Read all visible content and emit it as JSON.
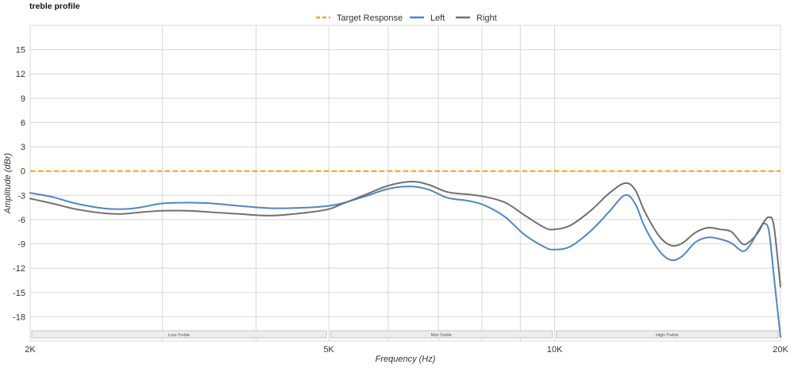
{
  "title": "treble profile",
  "colors": {
    "target": "#F5A31A",
    "left": "#4F86C6",
    "right": "#707070",
    "grid": "#D8D8D8",
    "band_fill": "#EDEDED",
    "band_border": "#B8B8B8"
  },
  "chart_data": {
    "type": "line",
    "title": "treble profile",
    "xlabel": "Frequency (Hz)",
    "ylabel": "Amplitude (dBr)",
    "xscale": "log",
    "xlim": [
      2000,
      20000
    ],
    "ylim": [
      -21,
      18
    ],
    "x_ticks": [
      {
        "value": 2000,
        "label": "2K"
      },
      {
        "value": 5000,
        "label": "5K"
      },
      {
        "value": 10000,
        "label": "10K"
      },
      {
        "value": 20000,
        "label": "20K"
      }
    ],
    "x_minor_gridlines": [
      3000,
      4000,
      6000,
      7000,
      8000,
      9000
    ],
    "y_ticks": [
      15,
      12,
      9,
      6,
      3,
      0,
      -3,
      -6,
      -9,
      -12,
      -15,
      -18
    ],
    "grid": true,
    "legend_position": "top-center",
    "bands": [
      {
        "label": "Low-Treble",
        "from": 2000,
        "to": 5000
      },
      {
        "label": "Mid-Treble",
        "from": 5000,
        "to": 10000
      },
      {
        "label": "High-Treble",
        "from": 10000,
        "to": 20000
      }
    ],
    "series": [
      {
        "name": "Target Response",
        "style": "dashed",
        "points": [
          [
            2000,
            0
          ],
          [
            20000,
            0
          ]
        ]
      },
      {
        "name": "Left",
        "style": "solid",
        "points": [
          [
            2000,
            -2.7
          ],
          [
            2140,
            -3.2
          ],
          [
            2300,
            -4.0
          ],
          [
            2500,
            -4.6
          ],
          [
            2650,
            -4.7
          ],
          [
            2800,
            -4.5
          ],
          [
            3000,
            -4.0
          ],
          [
            3250,
            -3.9
          ],
          [
            3500,
            -4.0
          ],
          [
            3800,
            -4.3
          ],
          [
            4200,
            -4.6
          ],
          [
            4700,
            -4.5
          ],
          [
            5000,
            -4.3
          ],
          [
            5200,
            -4.0
          ],
          [
            5600,
            -3.1
          ],
          [
            6000,
            -2.2
          ],
          [
            6450,
            -1.9
          ],
          [
            6800,
            -2.3
          ],
          [
            7200,
            -3.3
          ],
          [
            7700,
            -3.7
          ],
          [
            8100,
            -4.3
          ],
          [
            8600,
            -5.7
          ],
          [
            9100,
            -7.8
          ],
          [
            9700,
            -9.4
          ],
          [
            10000,
            -9.7
          ],
          [
            10500,
            -9.3
          ],
          [
            11200,
            -7.3
          ],
          [
            11800,
            -5.1
          ],
          [
            12400,
            -3.0
          ],
          [
            12800,
            -4.0
          ],
          [
            13200,
            -7.0
          ],
          [
            13800,
            -9.9
          ],
          [
            14300,
            -11.0
          ],
          [
            14800,
            -10.5
          ],
          [
            15400,
            -8.8
          ],
          [
            16000,
            -8.2
          ],
          [
            16600,
            -8.4
          ],
          [
            17200,
            -8.9
          ],
          [
            17800,
            -9.9
          ],
          [
            18200,
            -9.2
          ],
          [
            18700,
            -7.3
          ],
          [
            19000,
            -6.5
          ],
          [
            19300,
            -7.4
          ],
          [
            19600,
            -13.0
          ],
          [
            20000,
            -20.5
          ]
        ]
      },
      {
        "name": "Right",
        "style": "solid",
        "points": [
          [
            2000,
            -3.4
          ],
          [
            2140,
            -4.0
          ],
          [
            2300,
            -4.7
          ],
          [
            2500,
            -5.2
          ],
          [
            2650,
            -5.3
          ],
          [
            2800,
            -5.1
          ],
          [
            3000,
            -4.9
          ],
          [
            3250,
            -4.9
          ],
          [
            3500,
            -5.1
          ],
          [
            3800,
            -5.3
          ],
          [
            4200,
            -5.5
          ],
          [
            4700,
            -5.1
          ],
          [
            5000,
            -4.7
          ],
          [
            5200,
            -4.1
          ],
          [
            5600,
            -2.9
          ],
          [
            6000,
            -1.8
          ],
          [
            6450,
            -1.3
          ],
          [
            6800,
            -1.7
          ],
          [
            7200,
            -2.6
          ],
          [
            7700,
            -2.9
          ],
          [
            8100,
            -3.2
          ],
          [
            8600,
            -3.9
          ],
          [
            9100,
            -5.4
          ],
          [
            9700,
            -7.0
          ],
          [
            10000,
            -7.2
          ],
          [
            10500,
            -6.7
          ],
          [
            11200,
            -4.8
          ],
          [
            11800,
            -2.8
          ],
          [
            12400,
            -1.5
          ],
          [
            12800,
            -2.3
          ],
          [
            13200,
            -5.1
          ],
          [
            13800,
            -8.1
          ],
          [
            14300,
            -9.2
          ],
          [
            14800,
            -8.9
          ],
          [
            15400,
            -7.6
          ],
          [
            16000,
            -7.0
          ],
          [
            16600,
            -7.2
          ],
          [
            17200,
            -7.5
          ],
          [
            17800,
            -9.0
          ],
          [
            18200,
            -8.7
          ],
          [
            18700,
            -7.5
          ],
          [
            19000,
            -6.3
          ],
          [
            19300,
            -5.7
          ],
          [
            19600,
            -6.8
          ],
          [
            20000,
            -14.3
          ]
        ]
      }
    ]
  }
}
